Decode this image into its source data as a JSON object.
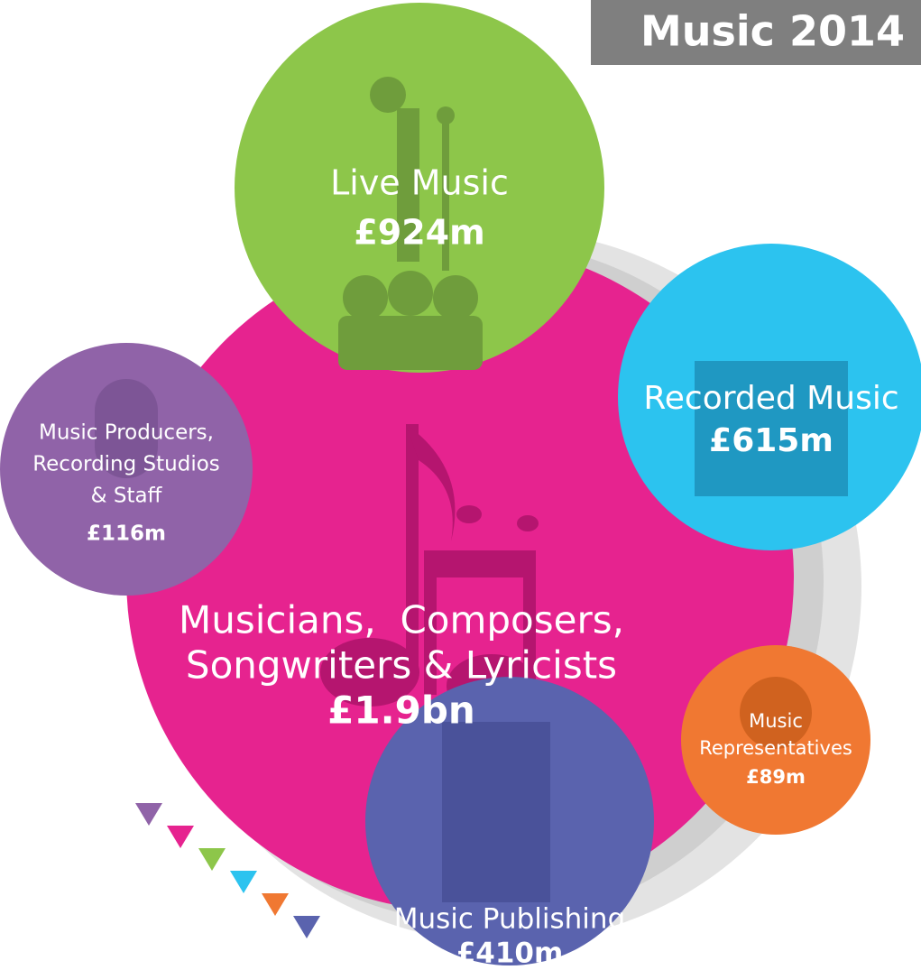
{
  "header": {
    "title": "Music 2014"
  },
  "nodes": [
    {
      "lines": [
        "Live Music"
      ],
      "value": "£924m"
    },
    {
      "lines": [
        "Recorded Music"
      ],
      "value": "£615m"
    },
    {
      "lines": [
        "Music Producers,",
        "Recording Studios",
        "& Staff"
      ],
      "value": "£116m"
    },
    {
      "lines": [
        "Musicians,  Composers,",
        "Songwriters & Lyricists"
      ],
      "value": "£1.9bn"
    },
    {
      "lines": [
        "Music",
        "Representatives"
      ],
      "value": "£89m"
    },
    {
      "lines": [
        "Music Publishing"
      ],
      "value": "£410m"
    }
  ]
}
